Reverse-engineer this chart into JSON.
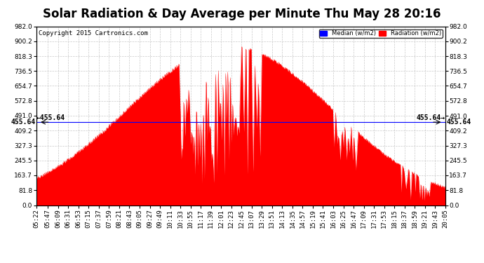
{
  "title": "Solar Radiation & Day Average per Minute Thu May 28 20:16",
  "copyright": "Copyright 2015 Cartronics.com",
  "legend_median_label": "Median (w/m2)",
  "legend_radiation_label": "Radiation (w/m2)",
  "median_value": 455.64,
  "ylim": [
    0.0,
    982.0
  ],
  "yticks": [
    0.0,
    81.8,
    163.7,
    245.5,
    327.3,
    409.2,
    491.0,
    572.8,
    654.7,
    736.5,
    818.3,
    900.2,
    982.0
  ],
  "background_color": "#ffffff",
  "fill_color": "#ff0000",
  "median_line_color": "#0000ff",
  "grid_color": "#bbbbbb",
  "title_fontsize": 12,
  "annotation_fontsize": 7,
  "tick_fontsize": 6.5,
  "x_tick_labels": [
    "05:22",
    "05:47",
    "06:09",
    "06:31",
    "06:53",
    "07:15",
    "07:37",
    "07:59",
    "08:21",
    "08:43",
    "09:05",
    "09:27",
    "09:49",
    "10:11",
    "10:33",
    "10:55",
    "11:17",
    "11:39",
    "12:01",
    "12:23",
    "12:45",
    "13:07",
    "13:29",
    "13:51",
    "14:13",
    "14:35",
    "14:57",
    "15:19",
    "15:41",
    "16:03",
    "16:25",
    "16:47",
    "17:09",
    "17:31",
    "17:53",
    "18:15",
    "18:37",
    "18:59",
    "19:21",
    "19:43",
    "20:05"
  ]
}
